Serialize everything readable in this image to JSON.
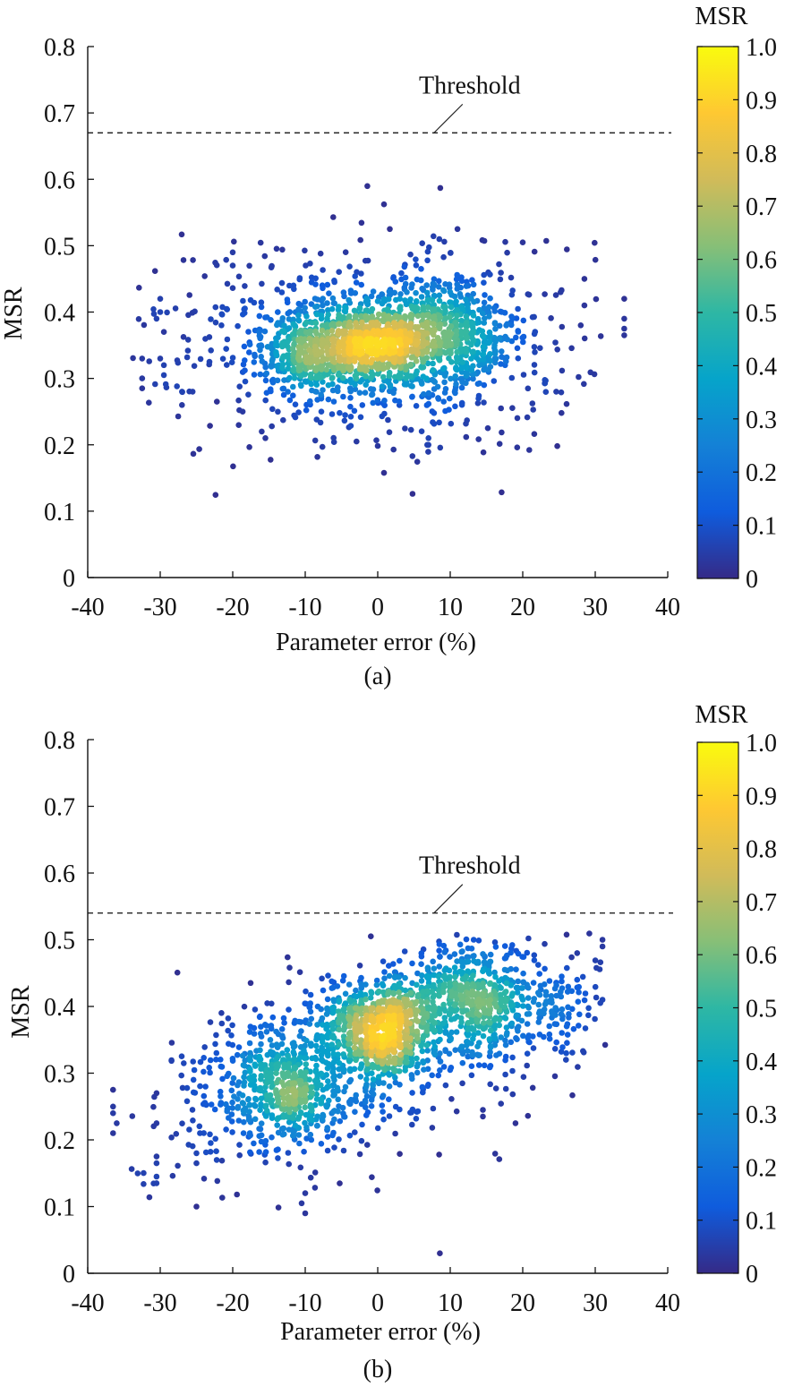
{
  "chart_data": [
    {
      "type": "scatter",
      "panel_label": "(a)",
      "xlabel": "Parameter error (%)",
      "ylabel": "MSR",
      "xlim": [
        -40,
        40
      ],
      "ylim": [
        0,
        0.8
      ],
      "xticks": [
        "-40",
        "-30",
        "-20",
        "-10",
        "0",
        "10",
        "20",
        "30",
        "40"
      ],
      "yticks": [
        "0",
        "0.1",
        "0.2",
        "0.3",
        "0.4",
        "0.5",
        "0.6",
        "0.7",
        "0.8"
      ],
      "threshold": {
        "label": "Threshold",
        "y": 0.67
      },
      "color_encoding": "point density",
      "colorbar": {
        "title": "MSR",
        "ticks": [
          "0",
          "0.1",
          "0.2",
          "0.3",
          "0.4",
          "0.5",
          "0.6",
          "0.7",
          "0.8",
          "0.9",
          "1.0"
        ],
        "colormap": [
          "#352a87",
          "#0f5cdd",
          "#1481d6",
          "#06a4ca",
          "#2eb7a4",
          "#87bf77",
          "#d1bb59",
          "#fec832",
          "#f9fb0e"
        ]
      },
      "clusters": [
        {
          "x": 0,
          "y": 0.35,
          "sx": 4.5,
          "sy": 0.03,
          "w": 0.28
        },
        {
          "x": -10,
          "y": 0.33,
          "sx": 3,
          "sy": 0.03,
          "w": 0.14
        },
        {
          "x": 10,
          "y": 0.37,
          "sx": 4,
          "sy": 0.035,
          "w": 0.16
        },
        {
          "x": 0,
          "y": 0.36,
          "sx": 12,
          "sy": 0.06,
          "w": 0.3
        },
        {
          "x": 0,
          "y": 0.35,
          "sx": 16,
          "sy": 0.09,
          "w": 0.12
        }
      ],
      "points_approx": 2200,
      "extra_points": [
        {
          "x": -32.5,
          "y": 0.33
        },
        {
          "x": -32.5,
          "y": 0.3
        },
        {
          "x": -32.5,
          "y": 0.285
        },
        {
          "x": -30,
          "y": 0.42
        },
        {
          "x": -30,
          "y": 0.4
        },
        {
          "x": -30.5,
          "y": 0.39
        },
        {
          "x": -29.5,
          "y": 0.37
        },
        {
          "x": -30,
          "y": 0.33
        },
        {
          "x": -29.5,
          "y": 0.32
        },
        {
          "x": -29.5,
          "y": 0.305
        },
        {
          "x": -27,
          "y": 0.28
        },
        {
          "x": -27,
          "y": 0.26
        },
        {
          "x": -20,
          "y": 0.49
        },
        {
          "x": -20,
          "y": 0.47
        },
        {
          "x": -16,
          "y": 0.22
        },
        {
          "x": -15.5,
          "y": 0.21
        },
        {
          "x": 7,
          "y": 0.21
        },
        {
          "x": 7,
          "y": 0.2
        },
        {
          "x": 11,
          "y": 0.525
        },
        {
          "x": 8.5,
          "y": 0.51
        },
        {
          "x": 20,
          "y": 0.505
        },
        {
          "x": 17,
          "y": 0.255
        },
        {
          "x": 34,
          "y": 0.42
        },
        {
          "x": 34,
          "y": 0.39
        },
        {
          "x": 34,
          "y": 0.375
        },
        {
          "x": 34,
          "y": 0.365
        },
        {
          "x": 28.5,
          "y": 0.45
        },
        {
          "x": 28.5,
          "y": 0.41
        },
        {
          "x": 28,
          "y": 0.38
        }
      ]
    },
    {
      "type": "scatter",
      "panel_label": "(b)",
      "xlabel": "Parameter error (%)",
      "ylabel": "MSR",
      "xlim": [
        -40,
        40
      ],
      "ylim": [
        0,
        0.8
      ],
      "xticks": [
        "-40",
        "-30",
        "-20",
        "-10",
        "0",
        "10",
        "20",
        "30",
        "40"
      ],
      "yticks": [
        "0",
        "0.1",
        "0.2",
        "0.3",
        "0.4",
        "0.5",
        "0.6",
        "0.7",
        "0.8"
      ],
      "threshold": {
        "label": "Threshold",
        "y": 0.54
      },
      "color_encoding": "point density",
      "colorbar": {
        "title": "MSR",
        "ticks": [
          "0",
          "0.1",
          "0.2",
          "0.3",
          "0.4",
          "0.5",
          "0.6",
          "0.7",
          "0.8",
          "0.9",
          "1.0"
        ],
        "colormap": [
          "#352a87",
          "#0f5cdd",
          "#1481d6",
          "#06a4ca",
          "#2eb7a4",
          "#87bf77",
          "#d1bb59",
          "#fec832",
          "#f9fb0e"
        ]
      },
      "clusters": [
        {
          "x": 0,
          "y": 0.345,
          "sx": 4,
          "sy": 0.025,
          "w": 0.2
        },
        {
          "x": 0,
          "y": 0.395,
          "sx": 4,
          "sy": 0.02,
          "w": 0.1
        },
        {
          "x": -12,
          "y": 0.27,
          "sx": 3,
          "sy": 0.035,
          "w": 0.12
        },
        {
          "x": 12,
          "y": 0.42,
          "sx": 5,
          "sy": 0.035,
          "w": 0.15
        },
        {
          "x": -15,
          "y": 0.29,
          "sx": 6,
          "sy": 0.05,
          "w": 0.1
        },
        {
          "x": 18,
          "y": 0.4,
          "sx": 6,
          "sy": 0.04,
          "w": 0.1
        },
        {
          "x": 0,
          "y": 0.33,
          "sx": 14,
          "sy": 0.08,
          "w": 0.23
        }
      ],
      "trend_slope": 0.004,
      "points_approx": 2400,
      "extra_points": [
        {
          "x": -36.5,
          "y": 0.275
        },
        {
          "x": -36.5,
          "y": 0.25
        },
        {
          "x": -36.5,
          "y": 0.24
        },
        {
          "x": -36,
          "y": 0.225
        },
        {
          "x": -36.5,
          "y": 0.21
        },
        {
          "x": -30.5,
          "y": 0.27
        },
        {
          "x": -30.5,
          "y": 0.225
        },
        {
          "x": -30.5,
          "y": 0.175
        },
        {
          "x": -30.5,
          "y": 0.165
        },
        {
          "x": -30.5,
          "y": 0.145
        },
        {
          "x": -30.5,
          "y": 0.135
        },
        {
          "x": -25,
          "y": 0.1
        },
        {
          "x": -25,
          "y": 0.165
        },
        {
          "x": -25,
          "y": 0.18
        },
        {
          "x": -10,
          "y": 0.09
        },
        {
          "x": -10.5,
          "y": 0.105
        },
        {
          "x": -10,
          "y": 0.12
        },
        {
          "x": 31,
          "y": 0.5
        },
        {
          "x": 31,
          "y": 0.49
        },
        {
          "x": 31,
          "y": 0.41
        },
        {
          "x": 26,
          "y": 0.33
        },
        {
          "x": 19,
          "y": 0.225
        },
        {
          "x": 14.5,
          "y": 0.235
        },
        {
          "x": 14.5,
          "y": 0.245
        },
        {
          "x": 27.5,
          "y": 0.48
        },
        {
          "x": 27.5,
          "y": 0.44
        }
      ]
    }
  ]
}
